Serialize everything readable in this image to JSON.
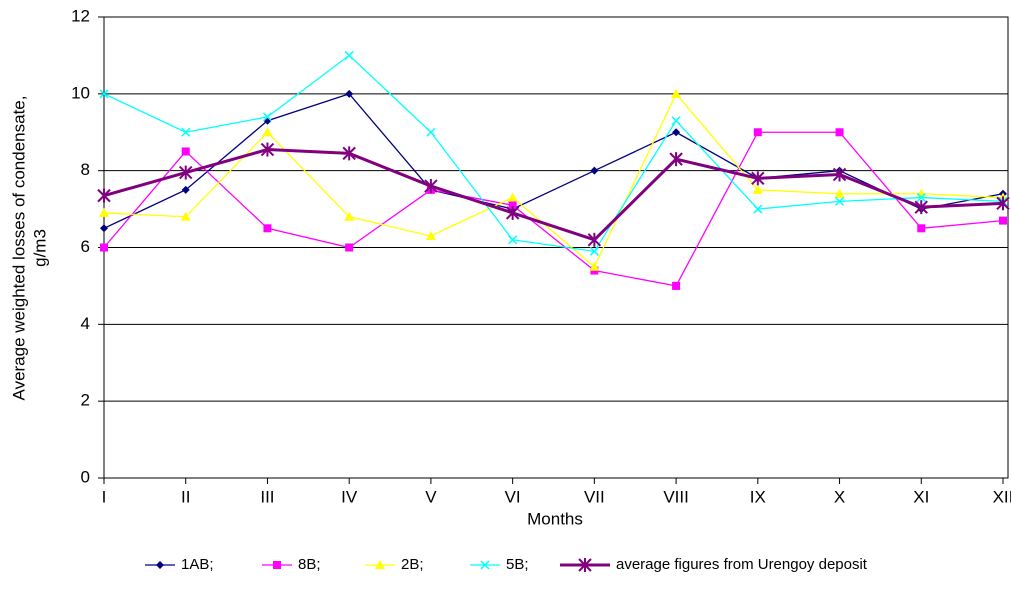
{
  "chart_data": {
    "type": "line",
    "ylabel": [
      "Average weighted losses of condensate,",
      "g/m3"
    ],
    "xlabel": "Months",
    "categories": [
      "I",
      "II",
      "III",
      "IV",
      "V",
      "VI",
      "VII",
      "VIII",
      "IX",
      "X",
      "XI",
      "XII"
    ],
    "series": [
      {
        "name": "1AB;",
        "color": "#000080",
        "marker": "diamond",
        "values": [
          6.5,
          7.5,
          9.3,
          10.0,
          7.5,
          7.0,
          8.0,
          9.0,
          7.8,
          8.0,
          7.0,
          7.4
        ]
      },
      {
        "name": "8B;",
        "color": "#ff00ff",
        "marker": "square",
        "values": [
          6.0,
          8.5,
          6.5,
          6.0,
          7.5,
          7.1,
          5.4,
          5.0,
          9.0,
          9.0,
          6.5,
          6.7
        ]
      },
      {
        "name": "2B;",
        "color": "#ffff00",
        "marker": "triangle",
        "values": [
          6.9,
          6.8,
          9.0,
          6.8,
          6.3,
          7.3,
          5.5,
          10.0,
          7.5,
          7.4,
          7.4,
          7.3
        ]
      },
      {
        "name": "5B;",
        "color": "#00ffff",
        "marker": "x",
        "values": [
          10.0,
          9.0,
          9.4,
          11.0,
          9.0,
          6.2,
          5.9,
          9.3,
          7.0,
          7.2,
          7.3,
          7.2
        ]
      },
      {
        "name": "average figures from Urengoy deposit",
        "color": "#800080",
        "marker": "star",
        "values": [
          7.35,
          7.95,
          8.55,
          8.45,
          7.6,
          6.9,
          6.2,
          8.3,
          7.8,
          7.9,
          7.05,
          7.15
        ]
      }
    ],
    "ylim": [
      0,
      12
    ],
    "yticks": [
      0,
      2,
      4,
      6,
      8,
      10,
      12
    ],
    "grid": true,
    "legend": "bottom"
  }
}
